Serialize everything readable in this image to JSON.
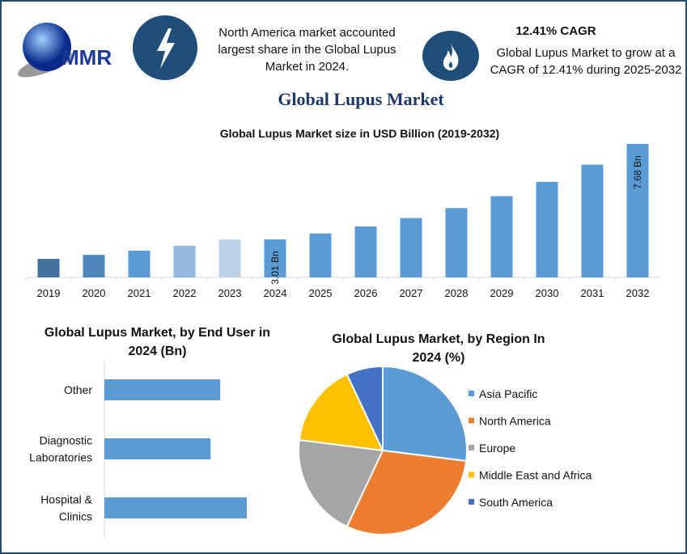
{
  "logo": {
    "text": "MMR"
  },
  "header": {
    "stat1_icon": "lightning-bolt-icon",
    "stat1_text": "North America market accounted largest share in the Global Lupus Market in 2024.",
    "stat2_icon": "flame-icon",
    "stat2_heading": "12.41% CAGR",
    "stat2_text": "Global Lupus Market to grow at a CAGR of 12.41% during 2025-2032",
    "main_title": "Global Lupus Market"
  },
  "colors": {
    "frame": "#2a4a6b",
    "icon_bg": "#1f4e79",
    "title": "#1f3864",
    "bar": "#5b9bd5"
  },
  "chart_data": [
    {
      "type": "bar",
      "title": "Global Lupus Market size in USD Billion (2019-2032)",
      "categories": [
        "2019",
        "2020",
        "2021",
        "2022",
        "2023",
        "2024",
        "2025",
        "2026",
        "2027",
        "2028",
        "2029",
        "2030",
        "2031",
        "2032"
      ],
      "values": [
        1.65,
        1.95,
        2.25,
        2.6,
        3.0,
        3.01,
        3.38,
        3.8,
        4.27,
        4.8,
        5.4,
        6.07,
        6.83,
        7.68
      ],
      "colors": [
        "#41719c",
        "#4f87bd",
        "#5b9bd5",
        "#94b8df",
        "#bdd1ea",
        "#5b9bd5",
        "#5b9bd5",
        "#5b9bd5",
        "#5b9bd5",
        "#5b9bd5",
        "#5b9bd5",
        "#5b9bd5",
        "#5b9bd5",
        "#5b9bd5"
      ],
      "data_labels": {
        "2024": "3.01 Bn",
        "2032": "7.68 Bn"
      },
      "grid": false
    },
    {
      "type": "bar",
      "orientation": "horizontal",
      "title": "Global Lupus Market, by End User in 2024 (Bn)",
      "categories": [
        "Other",
        "Diagnostic Laboratories",
        "Hospital & Clinics"
      ],
      "category_lines": [
        [
          "Other"
        ],
        [
          "Diagnostic",
          "Laboratories"
        ],
        [
          "Hospital &",
          "Clinics"
        ]
      ],
      "values": [
        0.96,
        0.88,
        1.18
      ]
    },
    {
      "type": "pie",
      "title": "Global Lupus Market, by Region In 2024 (%)",
      "labels": [
        "Asia Pacific",
        "North America",
        "Europe",
        "Middle East and Africa",
        "South America"
      ],
      "values": [
        27,
        30,
        20,
        16,
        7
      ],
      "colors": [
        "#5b9bd5",
        "#ed7d31",
        "#a5a5a5",
        "#ffc000",
        "#4472c4"
      ],
      "legend": "right"
    }
  ]
}
